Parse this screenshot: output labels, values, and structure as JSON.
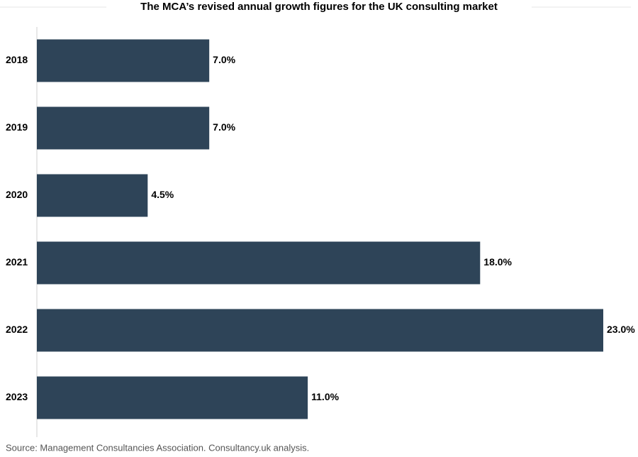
{
  "chart_data": {
    "type": "bar",
    "orientation": "horizontal",
    "title": "The MCA’s revised annual growth figures for the UK consulting market",
    "categories": [
      "2018",
      "2019",
      "2020",
      "2021",
      "2022",
      "2023"
    ],
    "values": [
      7.0,
      7.0,
      4.5,
      18.0,
      23.0,
      11.0
    ],
    "value_labels": [
      "7.0%",
      "7.0%",
      "4.5%",
      "18.0%",
      "23.0%",
      "11.0%"
    ],
    "color": "#2e4458",
    "source": "Source: Management Consultancies Association. Consultancy.uk analysis."
  }
}
